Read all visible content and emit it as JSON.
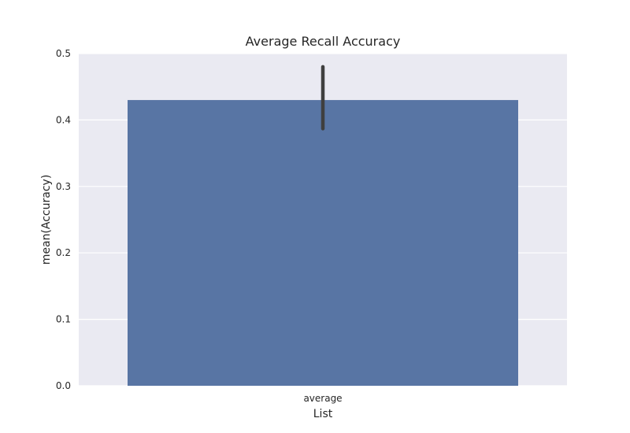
{
  "chart_data": {
    "type": "bar",
    "title": "Average Recall Accuracy",
    "xlabel": "List",
    "ylabel": "mean(Accuracy)",
    "categories": [
      "average"
    ],
    "values": [
      0.43
    ],
    "error_bars": [
      {
        "low": 0.387,
        "high": 0.48
      }
    ],
    "ylim": [
      0,
      0.5
    ],
    "yticks": [
      "0.0",
      "0.1",
      "0.2",
      "0.3",
      "0.4",
      "0.5"
    ],
    "grid": true,
    "colors": {
      "plot_background": "#eaeaf2",
      "grid": "#ffffff",
      "bar": "#5875a4",
      "error_bar": "#3f3f3f",
      "text": "#262626"
    }
  }
}
